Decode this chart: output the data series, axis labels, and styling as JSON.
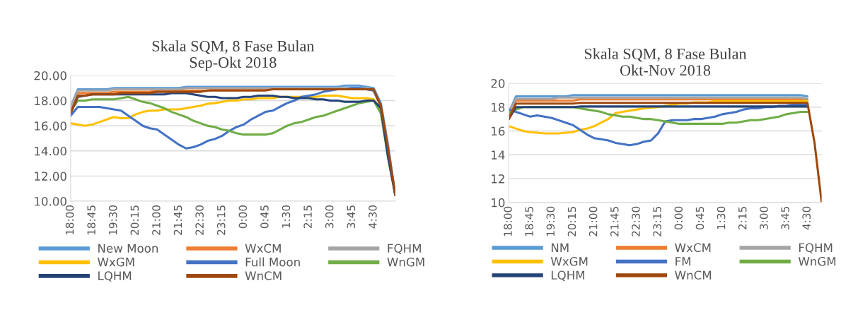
{
  "chart_data": [
    {
      "type": "line",
      "title": "Skala SQM, 8 Fase Bulan\nSep-Okt 2018",
      "ylim": [
        10,
        20
      ],
      "categories": [
        "18:00",
        null,
        null,
        "18:45",
        null,
        null,
        "19:30",
        null,
        null,
        "20:15",
        null,
        null,
        "21:00",
        null,
        null,
        "21:45",
        null,
        null,
        "22:30",
        null,
        null,
        "23:15",
        null,
        null,
        "0:00",
        null,
        null,
        "0:45",
        null,
        null,
        "1:30",
        null,
        null,
        "2:15",
        null,
        null,
        "3:00",
        null,
        null,
        "3:45",
        null,
        null,
        "4:30",
        null,
        null,
        null
      ],
      "yticks": [
        {
          "value": 10,
          "label": "10.00"
        },
        {
          "value": 12,
          "label": "12.00"
        },
        {
          "value": 14,
          "label": "14.00"
        },
        {
          "value": 16,
          "label": "16.00"
        },
        {
          "value": 18,
          "label": "18.00"
        },
        {
          "value": 20,
          "label": "20.00"
        }
      ],
      "grid": "y",
      "legend": "bottom",
      "marker": "none",
      "line_style": "solid",
      "series": [
        {
          "name": "New Moon",
          "color": "#5b9bd5",
          "values": [
            17.5,
            18.9,
            18.9,
            18.9,
            18.9,
            18.9,
            19.0,
            19.0,
            19.0,
            19.0,
            19.0,
            19.0,
            19.0,
            19.0,
            19.0,
            19.0,
            19.1,
            19.1,
            19.1,
            19.1,
            19.1,
            19.1,
            19.1,
            19.1,
            19.1,
            19.1,
            19.1,
            19.1,
            19.1,
            19.1,
            19.1,
            19.1,
            19.1,
            19.1,
            19.1,
            19.1,
            19.1,
            19.1,
            19.2,
            19.2,
            19.2,
            19.1,
            19.0,
            17.8,
            14.5,
            10.5
          ]
        },
        {
          "name": "WxCM",
          "color": "#ed7d31",
          "values": [
            17.3,
            18.6,
            18.6,
            18.6,
            18.6,
            18.6,
            18.7,
            18.7,
            18.7,
            18.7,
            18.7,
            18.7,
            18.8,
            18.8,
            18.8,
            18.8,
            18.8,
            18.8,
            18.8,
            18.8,
            18.9,
            18.9,
            18.9,
            18.9,
            18.9,
            18.9,
            18.9,
            18.9,
            18.9,
            18.9,
            18.9,
            18.9,
            18.9,
            18.9,
            18.9,
            18.9,
            18.9,
            18.9,
            18.9,
            18.9,
            18.9,
            18.9,
            18.8,
            17.5,
            14.0,
            10.5
          ]
        },
        {
          "name": "FQHM",
          "color": "#a5a5a5",
          "values": [
            17.5,
            18.8,
            18.8,
            18.8,
            18.8,
            18.8,
            18.9,
            18.9,
            18.9,
            18.9,
            18.9,
            18.9,
            18.9,
            18.9,
            18.9,
            18.9,
            19.0,
            19.0,
            19.0,
            19.0,
            19.0,
            19.0,
            19.0,
            19.0,
            19.0,
            19.0,
            19.0,
            19.0,
            19.0,
            19.0,
            19.0,
            19.0,
            19.0,
            19.0,
            19.0,
            19.0,
            19.0,
            19.0,
            19.0,
            19.0,
            19.0,
            19.0,
            18.9,
            17.6,
            14.2,
            10.5
          ]
        },
        {
          "name": "WxGM",
          "color": "#ffc000",
          "values": [
            16.2,
            16.1,
            16.0,
            16.1,
            16.3,
            16.5,
            16.7,
            16.6,
            16.6,
            16.9,
            17.1,
            17.2,
            17.2,
            17.3,
            17.3,
            17.3,
            17.4,
            17.5,
            17.6,
            17.75,
            17.8,
            17.9,
            18.0,
            18.0,
            18.1,
            18.1,
            18.2,
            18.2,
            18.2,
            18.3,
            18.3,
            18.3,
            18.3,
            18.3,
            18.3,
            18.4,
            18.4,
            18.4,
            18.3,
            18.2,
            18.2,
            18.2,
            18.1,
            17.3,
            null,
            null
          ]
        },
        {
          "name": "Full Moon",
          "color": "#4472c4",
          "values": [
            16.8,
            17.5,
            17.5,
            17.5,
            17.5,
            17.4,
            17.3,
            17.2,
            16.8,
            16.4,
            16.0,
            15.8,
            15.7,
            15.3,
            14.9,
            14.5,
            14.2,
            14.3,
            14.5,
            14.8,
            14.95,
            15.2,
            15.6,
            15.9,
            16.1,
            16.5,
            16.8,
            17.1,
            17.2,
            17.5,
            17.8,
            18.0,
            18.3,
            18.4,
            18.5,
            18.7,
            18.8,
            18.9,
            18.9,
            19.0,
            19.0,
            18.9,
            18.8,
            17.6,
            14.0,
            10.5
          ]
        },
        {
          "name": "WnGM",
          "color": "#70ad47",
          "values": [
            17.2,
            18.0,
            18.0,
            18.1,
            18.1,
            18.1,
            18.1,
            18.2,
            18.3,
            18.1,
            17.9,
            17.8,
            17.6,
            17.4,
            17.1,
            16.9,
            16.7,
            16.4,
            16.2,
            16.0,
            15.9,
            15.7,
            15.6,
            15.4,
            15.3,
            15.3,
            15.3,
            15.3,
            15.4,
            15.7,
            16.0,
            16.2,
            16.3,
            16.5,
            16.7,
            16.8,
            17.0,
            17.2,
            17.4,
            17.6,
            17.8,
            17.9,
            18.0,
            17.0,
            13.5,
            10.5
          ]
        },
        {
          "name": "LQHM",
          "color": "#264478",
          "values": [
            17.0,
            18.3,
            18.4,
            18.5,
            18.5,
            18.5,
            18.5,
            18.5,
            18.5,
            18.5,
            18.5,
            18.5,
            18.5,
            18.5,
            18.6,
            18.6,
            18.6,
            18.5,
            18.4,
            18.3,
            18.3,
            18.2,
            18.2,
            18.2,
            18.3,
            18.3,
            18.4,
            18.4,
            18.4,
            18.3,
            18.3,
            18.2,
            18.2,
            18.2,
            18.1,
            18.1,
            18.0,
            18.0,
            17.9,
            17.9,
            17.9,
            18.0,
            18.0,
            17.4,
            13.5,
            10.5
          ]
        },
        {
          "name": "WnCM",
          "color": "#9e480e",
          "values": [
            17.0,
            18.4,
            18.4,
            18.5,
            18.5,
            18.5,
            18.5,
            18.6,
            18.6,
            18.6,
            18.6,
            18.6,
            18.7,
            18.7,
            18.7,
            18.7,
            18.7,
            18.7,
            18.7,
            18.8,
            18.8,
            18.8,
            18.8,
            18.8,
            18.8,
            18.8,
            18.8,
            18.8,
            18.9,
            18.9,
            18.9,
            18.9,
            18.9,
            18.9,
            18.9,
            18.9,
            18.9,
            18.9,
            18.9,
            18.9,
            18.9,
            18.9,
            18.9,
            17.6,
            14.2,
            10.5
          ]
        }
      ]
    },
    {
      "type": "line",
      "title": "Skala SQM, 8 Fase Bulan\nOkt-Nov 2018",
      "ylim": [
        10,
        20
      ],
      "categories": [
        "18:00",
        null,
        null,
        "18:45",
        null,
        null,
        "19:30",
        null,
        null,
        "20:15",
        null,
        null,
        "21:00",
        null,
        null,
        "21:45",
        null,
        null,
        "22:30",
        null,
        null,
        "23:15",
        null,
        null,
        "0:00",
        null,
        null,
        "0:45",
        null,
        null,
        "1:30",
        null,
        null,
        "2:15",
        null,
        null,
        "3:00",
        null,
        null,
        "3:45",
        null,
        null,
        "4:30",
        null,
        null
      ],
      "yticks": [
        10,
        12,
        14,
        16,
        18,
        20
      ],
      "grid": "y",
      "legend": "bottom",
      "marker": "none",
      "line_style": "solid",
      "series": [
        {
          "name": "NM",
          "color": "#5b9bd5",
          "values": [
            17.5,
            18.9,
            18.9,
            18.9,
            18.9,
            18.9,
            18.9,
            18.9,
            18.9,
            19.0,
            19.0,
            19.0,
            19.0,
            19.0,
            19.0,
            19.0,
            19.0,
            19.0,
            19.0,
            19.0,
            19.0,
            19.0,
            19.0,
            19.0,
            19.0,
            19.0,
            19.0,
            19.0,
            19.0,
            19.0,
            19.0,
            19.0,
            19.0,
            19.0,
            19.0,
            19.0,
            19.0,
            19.0,
            19.0,
            19.0,
            19.0,
            19.0,
            18.9,
            null,
            null
          ]
        },
        {
          "name": "WxCM",
          "color": "#ed7d31",
          "values": [
            17.3,
            18.55,
            18.55,
            18.55,
            18.55,
            18.55,
            18.55,
            18.55,
            18.55,
            18.55,
            18.65,
            18.65,
            18.65,
            18.65,
            18.65,
            18.65,
            18.65,
            18.65,
            18.65,
            18.65,
            18.65,
            18.65,
            18.65,
            18.65,
            18.65,
            18.65,
            18.65,
            18.65,
            18.65,
            18.65,
            18.65,
            18.65,
            18.65,
            18.65,
            18.65,
            18.65,
            18.65,
            18.65,
            18.65,
            18.65,
            18.65,
            18.65,
            18.55,
            null,
            null
          ]
        },
        {
          "name": "FQHM",
          "color": "#a5a5a5",
          "values": [
            17.5,
            18.7,
            18.7,
            18.7,
            18.7,
            18.7,
            18.7,
            18.8,
            18.8,
            18.8,
            18.8,
            18.8,
            18.8,
            18.8,
            18.8,
            18.8,
            18.8,
            18.8,
            18.8,
            18.8,
            18.8,
            18.8,
            18.8,
            18.8,
            18.8,
            18.8,
            18.8,
            18.8,
            18.8,
            18.8,
            18.8,
            18.8,
            18.8,
            18.8,
            18.8,
            18.8,
            18.8,
            18.8,
            18.8,
            18.8,
            18.8,
            18.8,
            18.7,
            null,
            null
          ]
        },
        {
          "name": "WxGM",
          "color": "#ffc000",
          "values": [
            16.4,
            16.2,
            16.0,
            15.9,
            15.85,
            15.8,
            15.8,
            15.8,
            15.85,
            15.9,
            16.1,
            16.2,
            16.4,
            16.7,
            17.0,
            17.5,
            17.6,
            17.7,
            17.8,
            17.9,
            17.95,
            18.0,
            18.1,
            18.2,
            18.3,
            18.3,
            18.4,
            18.4,
            18.4,
            18.5,
            18.5,
            18.5,
            18.5,
            18.5,
            18.5,
            18.5,
            18.5,
            18.5,
            18.5,
            18.5,
            18.5,
            18.5,
            18.5,
            null,
            null
          ]
        },
        {
          "name": "FM",
          "color": "#4472c4",
          "values": [
            17.8,
            17.6,
            17.4,
            17.2,
            17.3,
            17.2,
            17.1,
            16.9,
            16.7,
            16.5,
            16.1,
            15.7,
            15.4,
            15.3,
            15.2,
            15.0,
            14.9,
            14.8,
            14.9,
            15.1,
            15.2,
            15.8,
            16.8,
            16.9,
            16.9,
            16.9,
            17.0,
            17.0,
            17.1,
            17.2,
            17.4,
            17.5,
            17.6,
            17.8,
            17.9,
            17.9,
            18.0,
            18.0,
            18.1,
            18.1,
            18.2,
            18.2,
            18.2,
            null,
            null
          ]
        },
        {
          "name": "WnGM",
          "color": "#70ad47",
          "values": [
            17.5,
            17.8,
            18.0,
            18.0,
            18.0,
            18.0,
            18.0,
            18.0,
            18.0,
            18.0,
            17.9,
            17.8,
            17.7,
            17.6,
            17.4,
            17.3,
            17.2,
            17.2,
            17.1,
            17.0,
            17.0,
            16.9,
            16.8,
            16.7,
            16.6,
            16.6,
            16.6,
            16.6,
            16.6,
            16.6,
            16.6,
            16.7,
            16.7,
            16.8,
            16.9,
            16.9,
            17.0,
            17.1,
            17.2,
            17.4,
            17.5,
            17.6,
            17.6,
            null,
            null
          ]
        },
        {
          "name": "LQHM",
          "color": "#264478",
          "values": [
            17.0,
            18.0,
            18.0,
            18.0,
            18.0,
            18.0,
            18.0,
            18.0,
            18.0,
            18.0,
            18.05,
            18.05,
            18.05,
            18.05,
            18.05,
            18.05,
            18.05,
            18.05,
            18.05,
            18.05,
            18.05,
            18.05,
            18.05,
            18.05,
            18.05,
            18.05,
            18.05,
            18.05,
            18.05,
            18.05,
            18.05,
            18.05,
            18.05,
            18.05,
            18.05,
            18.05,
            18.05,
            18.05,
            18.05,
            18.05,
            18.05,
            18.05,
            18.05,
            null,
            null
          ]
        },
        {
          "name": "WnCM",
          "color": "#9e480e",
          "values": [
            17.0,
            18.3,
            18.3,
            18.3,
            18.3,
            18.3,
            18.3,
            18.3,
            18.3,
            18.3,
            18.35,
            18.35,
            18.35,
            18.35,
            18.35,
            18.35,
            18.35,
            18.35,
            18.35,
            18.35,
            18.35,
            18.35,
            18.35,
            18.35,
            18.35,
            18.35,
            18.35,
            18.35,
            18.35,
            18.35,
            18.35,
            18.35,
            18.35,
            18.35,
            18.35,
            18.35,
            18.35,
            18.35,
            18.35,
            18.35,
            18.35,
            18.35,
            18.35,
            15.0,
            10
          ]
        }
      ]
    }
  ]
}
